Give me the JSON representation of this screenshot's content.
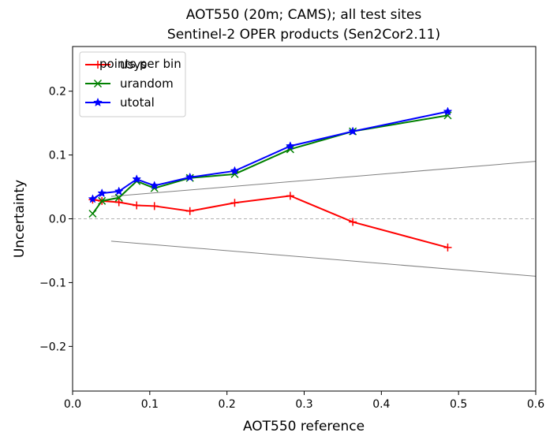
{
  "chart_data": {
    "type": "line",
    "title": "AOT550 (20m; CAMS); all test sites",
    "subtitle": "Sentinel-2 OPER products (Sen2Cor2.11)",
    "xlabel": "AOT550 reference",
    "ylabel": "Uncertainty",
    "xlim": [
      0.0,
      0.6
    ],
    "ylim": [
      -0.27,
      0.27
    ],
    "xticks": [
      0.0,
      0.1,
      0.2,
      0.3,
      0.4,
      0.5,
      0.6
    ],
    "xtick_labels": [
      "0.0",
      "0.1",
      "0.2",
      "0.3",
      "0.4",
      "0.5",
      "0.6"
    ],
    "yticks": [
      -0.2,
      -0.1,
      0.0,
      0.1,
      0.2
    ],
    "ytick_labels": [
      "−0.2",
      "−0.1",
      "0.0",
      "0.1",
      "0.2"
    ],
    "grid": false,
    "legend_position": "top-left",
    "annotation": "points per bin",
    "series": [
      {
        "name": "usys",
        "color": "#ff0000",
        "marker": "plus",
        "x": [
          0.026,
          0.038,
          0.06,
          0.083,
          0.106,
          0.152,
          0.21,
          0.282,
          0.363,
          0.486
        ],
        "y": [
          0.03,
          0.028,
          0.026,
          0.021,
          0.02,
          0.012,
          0.025,
          0.036,
          -0.005,
          -0.045
        ]
      },
      {
        "name": "urandom",
        "color": "#008000",
        "marker": "x",
        "x": [
          0.026,
          0.038,
          0.06,
          0.083,
          0.106,
          0.152,
          0.21,
          0.282,
          0.363,
          0.486
        ],
        "y": [
          0.008,
          0.028,
          0.033,
          0.059,
          0.048,
          0.064,
          0.07,
          0.109,
          0.137,
          0.162
        ]
      },
      {
        "name": "utotal",
        "color": "#0000ff",
        "marker": "star",
        "x": [
          0.026,
          0.038,
          0.06,
          0.083,
          0.106,
          0.152,
          0.21,
          0.282,
          0.363,
          0.486
        ],
        "y": [
          0.031,
          0.04,
          0.043,
          0.062,
          0.052,
          0.065,
          0.075,
          0.114,
          0.137,
          0.168
        ]
      }
    ],
    "reference_lines": [
      {
        "kind": "spec-upper",
        "color": "#808080",
        "x": [
          0.05,
          0.6
        ],
        "y": [
          0.035,
          0.09
        ]
      },
      {
        "kind": "spec-lower",
        "color": "#808080",
        "x": [
          0.05,
          0.6
        ],
        "y": [
          -0.035,
          -0.09
        ]
      },
      {
        "kind": "zero",
        "color": "#b0b0b0",
        "dashed": true,
        "x": [
          0.0,
          0.6
        ],
        "y": [
          0.0,
          0.0
        ]
      }
    ]
  }
}
